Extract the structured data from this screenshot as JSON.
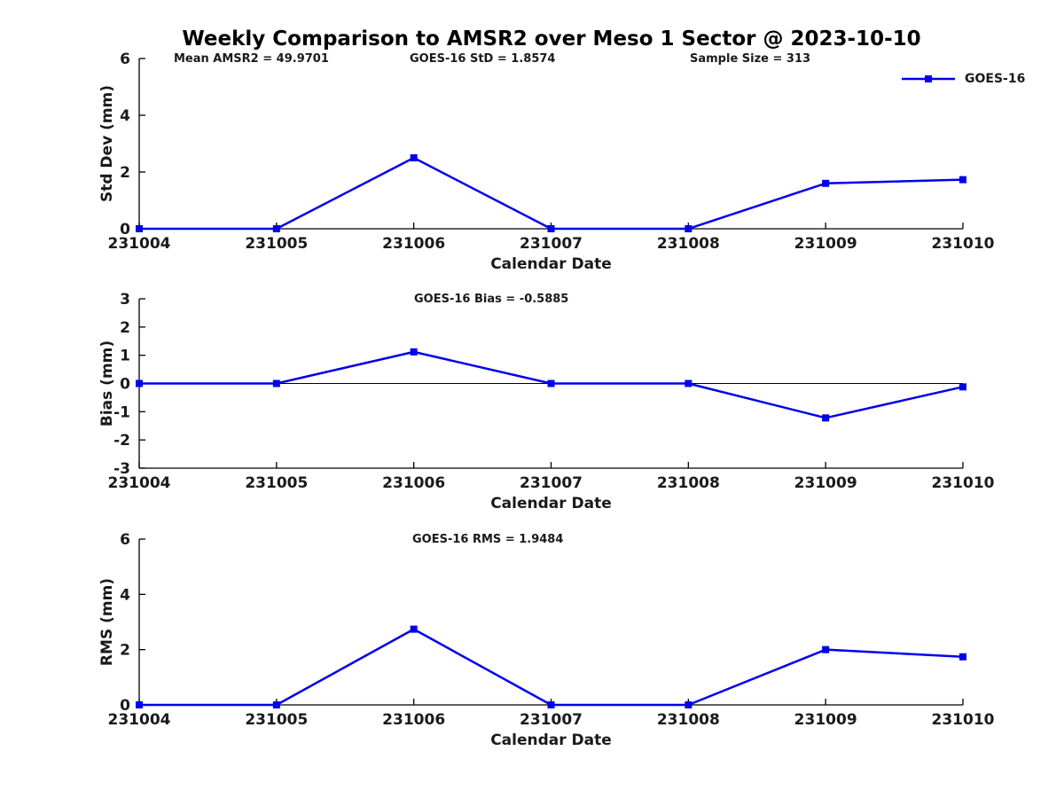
{
  "title": "Weekly Comparison to AMSR2 over Meso 1 Sector @ 2023-10-10",
  "legend": {
    "label": "GOES-16"
  },
  "colors": {
    "line": "#0000EE",
    "axis": "#000000",
    "text": "#1a1a1a"
  },
  "chart_data": [
    {
      "type": "line",
      "title": "",
      "categories": [
        "231004",
        "231005",
        "231006",
        "231007",
        "231008",
        "231009",
        "231010"
      ],
      "series": [
        {
          "name": "GOES-16",
          "values": [
            0,
            0,
            2.5,
            0,
            0,
            1.6,
            1.73
          ]
        }
      ],
      "ylabel": "Std Dev (mm)",
      "xlabel": "Calendar Date",
      "ylim": [
        0,
        6
      ],
      "yticks": [
        0,
        2,
        4,
        6
      ],
      "annotations": [
        "Mean AMSR2 = 49.9701",
        "GOES-16 StD = 1.8574",
        "Sample Size = 313"
      ],
      "zero_line": false,
      "legend_position": "top-right-outside",
      "grid": false
    },
    {
      "type": "line",
      "title": "",
      "categories": [
        "231004",
        "231005",
        "231006",
        "231007",
        "231008",
        "231009",
        "231010"
      ],
      "series": [
        {
          "name": "GOES-16",
          "values": [
            0,
            0,
            1.12,
            0,
            0,
            -1.22,
            -0.12
          ]
        }
      ],
      "ylabel": "Bias (mm)",
      "xlabel": "Calendar Date",
      "ylim": [
        -3,
        3
      ],
      "yticks": [
        -3,
        -2,
        -1,
        0,
        1,
        2,
        3
      ],
      "annotations": [
        "GOES-16 Bias  = -0.5885"
      ],
      "zero_line": true,
      "grid": false
    },
    {
      "type": "line",
      "title": "",
      "categories": [
        "231004",
        "231005",
        "231006",
        "231007",
        "231008",
        "231009",
        "231010"
      ],
      "series": [
        {
          "name": "GOES-16",
          "values": [
            0,
            0,
            2.74,
            0,
            0,
            2.0,
            1.74
          ]
        }
      ],
      "ylabel": "RMS (mm)",
      "xlabel": "Calendar Date",
      "ylim": [
        0,
        6
      ],
      "yticks": [
        0,
        2,
        4,
        6
      ],
      "annotations": [
        "GOES-16 RMS = 1.9484"
      ],
      "zero_line": false,
      "grid": false
    }
  ]
}
